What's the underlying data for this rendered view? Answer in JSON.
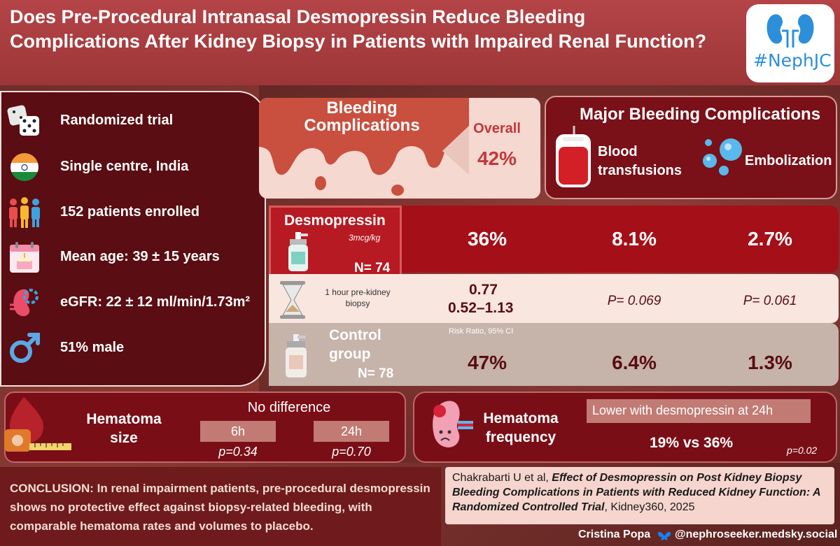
{
  "header": {
    "title": "Does Pre-Procedural Intranasal Desmopressin Reduce Bleeding Complications After Kidney Biopsy in Patients with Impaired Renal Function?",
    "logo_text": "#NephJC"
  },
  "study": {
    "items": [
      {
        "icon": "dice-icon",
        "text": "Randomized trial"
      },
      {
        "icon": "india-flag-icon",
        "text": "Single centre, India"
      },
      {
        "icon": "people-icon",
        "text": "152 patients enrolled"
      },
      {
        "icon": "calendar-icon",
        "text": "Mean age: 39 ± 15 years"
      },
      {
        "icon": "kidney-icon",
        "text": "eGFR: 22 ± 12 ml/min/1.73m²"
      },
      {
        "icon": "male-icon",
        "text": "51% male"
      }
    ]
  },
  "bleeding": {
    "title": "Bleeding Complications",
    "overall_label": "Overall",
    "overall_value": "42%"
  },
  "major": {
    "title": "Major Bleeding Complications",
    "blood_label": "Blood transfusions",
    "embol_label": "Embolization"
  },
  "desmo": {
    "label": "Desmopressin",
    "dose": "3mcg/kg",
    "n": "N= 74",
    "overall": "36%",
    "transfusion": "8.1%",
    "embolization": "2.7%"
  },
  "mid": {
    "timing": "1 hour pre-kidney biopsy",
    "rr_line1": "0.77",
    "rr_line2": "0.52–1.13",
    "p_transfusion": "P= 0.069",
    "p_embolization": "P= 0.061",
    "rr_note": "Risk Ratio, 95% CI"
  },
  "control": {
    "label": "Control group",
    "n": "N= 78",
    "overall": "47%",
    "transfusion": "6.4%",
    "embolization": "1.3%"
  },
  "hematoma_size": {
    "label": "Hematoma size",
    "summary": "No difference",
    "t1": "6h",
    "t2": "24h",
    "p1": "p=0.34",
    "p2": "p=0.70"
  },
  "hematoma_freq": {
    "label": "Hematoma frequency",
    "summary": "Lower with desmopressin at 24h",
    "comparison": "19% vs 36%",
    "p": "p=0.02"
  },
  "conclusion": {
    "text": "CONCLUSION: In renal impairment patients, pre-procedural desmopressin shows no protective effect against biopsy-related bleeding, with comparable hematoma rates and volumes to placebo."
  },
  "reference": {
    "authors": "Chakrabarti U et al, ",
    "title": "Effect of Desmopressin on Post Kidney Biopsy Bleeding Complications in Patients with Reduced Kidney Function: A Randomized Controlled Trial",
    "journal": ", Kidney360, 2025"
  },
  "credit": {
    "name": "Cristina Popa",
    "handle": "@nephroseeker.medsky.social"
  },
  "colors": {
    "header": "#b44447",
    "dark_panel": "#5a0d12",
    "desmo_row": "#a50f18",
    "control_row": "#c6b3aa",
    "accent_blue": "#2d8fd9"
  }
}
